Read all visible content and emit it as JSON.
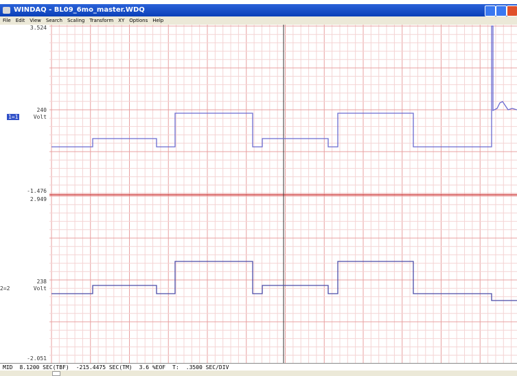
{
  "window": {
    "title": "WINDAQ - BL09_6mo_master.WDQ"
  },
  "menu": [
    "File",
    "Edit",
    "View",
    "Search",
    "Scaling",
    "Transform",
    "XY",
    "Options",
    "Help"
  ],
  "channels": [
    {
      "top": "3.524",
      "mid": "240",
      "unit": "Volt",
      "id": "1=1",
      "bottom": "-1.476"
    },
    {
      "top": "2.949",
      "mid": "238",
      "unit": "Volt",
      "id": "2=2",
      "bottom": "-2.051"
    }
  ],
  "status": [
    "MID",
    "8.1200 SEC(TBF)",
    "-215.4475 SEC(TM)",
    "3.6 %EOF",
    "T:",
    ".3500 SEC/DIV"
  ]
}
